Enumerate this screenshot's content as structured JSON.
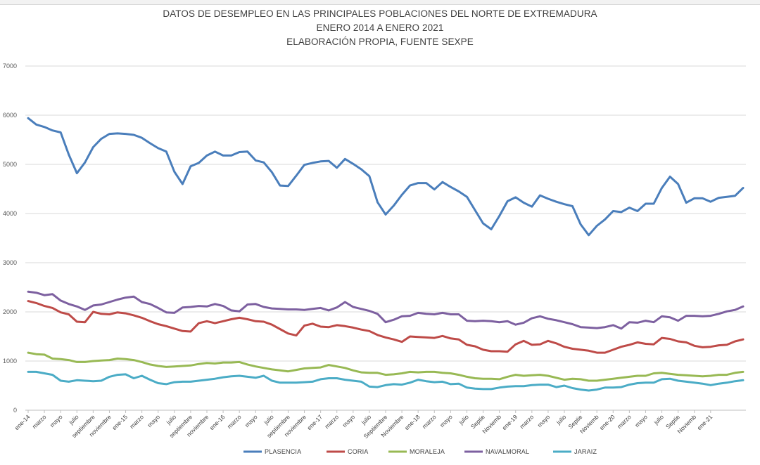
{
  "chart_data": {
    "type": "line",
    "title": "DATOS DE DESEMPLEO EN LAS PRINCIPALES POBLACIONES DEL NORTE DE EXTREMADURA",
    "subtitle": "ENERO 2014 A  ENERO  2021",
    "subtitle2": "ELABORACIÓN PROPIA, FUENTE SEXPE",
    "xlabel": "",
    "ylabel": "",
    "ylim": [
      0,
      7000
    ],
    "yticks": [
      "0",
      "1000",
      "2000",
      "3000",
      "4000",
      "5000",
      "6000",
      "7000"
    ],
    "grid": true,
    "legend_position": "bottom",
    "x_tick_labels": [
      "ene-14",
      "marzo",
      "mayo",
      "julio",
      "septiembre",
      "noviembre",
      "ene-15",
      "marzo",
      "mayo",
      "julio",
      "septiembre",
      "noviembre",
      "ene-16",
      "marzo",
      "mayo",
      "julio",
      "septiembre",
      "noviembre",
      "ene-17",
      "marzo",
      "mayo",
      "julio",
      "Septiembre",
      "Noviembre",
      "ene-18",
      "marzo",
      "mayo",
      "julio",
      "Septie",
      "Noviemb",
      "ene-19",
      "marzo",
      "mayo",
      "julio",
      "Septie",
      "Noviemb",
      "ene-20",
      "marzo",
      "mayo",
      "julio",
      "Septie",
      "Noviemb",
      "ene-21"
    ],
    "series": [
      {
        "name": "PLASENCIA",
        "color": "#4a7ebb",
        "values": [
          5940,
          5810,
          5760,
          5690,
          5650,
          5200,
          4820,
          5040,
          5350,
          5520,
          5620,
          5630,
          5620,
          5600,
          5540,
          5430,
          5330,
          5260,
          4850,
          4600,
          4960,
          5030,
          5180,
          5260,
          5180,
          5180,
          5250,
          5260,
          5080,
          5040,
          4840,
          4570,
          4560,
          4770,
          4990,
          5030,
          5060,
          5070,
          4930,
          5110,
          5010,
          4900,
          4760,
          4230,
          3980,
          4160,
          4380,
          4570,
          4620,
          4620,
          4490,
          4640,
          4540,
          4450,
          4340,
          4070,
          3800,
          3680,
          3950,
          4250,
          4330,
          4220,
          4140,
          4370,
          4300,
          4240,
          4190,
          4150,
          3780,
          3560,
          3750,
          3880,
          4050,
          4030,
          4120,
          4050,
          4200,
          4200,
          4520,
          4750,
          4600,
          4220,
          4310,
          4310,
          4240,
          4320,
          4340,
          4360,
          4520
        ]
      },
      {
        "name": "CORIA",
        "color": "#be4b48",
        "values": [
          2220,
          2180,
          2120,
          2080,
          1990,
          1950,
          1800,
          1790,
          2000,
          1960,
          1950,
          1990,
          1970,
          1930,
          1880,
          1810,
          1750,
          1710,
          1660,
          1610,
          1600,
          1770,
          1810,
          1770,
          1810,
          1850,
          1880,
          1850,
          1810,
          1800,
          1740,
          1650,
          1560,
          1520,
          1720,
          1760,
          1700,
          1690,
          1730,
          1710,
          1680,
          1640,
          1610,
          1530,
          1480,
          1440,
          1390,
          1500,
          1490,
          1480,
          1470,
          1510,
          1460,
          1440,
          1330,
          1300,
          1230,
          1200,
          1200,
          1190,
          1340,
          1410,
          1330,
          1340,
          1410,
          1360,
          1290,
          1250,
          1230,
          1210,
          1170,
          1170,
          1230,
          1290,
          1330,
          1380,
          1350,
          1340,
          1470,
          1450,
          1400,
          1380,
          1310,
          1280,
          1290,
          1320,
          1330,
          1400,
          1440
        ]
      },
      {
        "name": "MORALEJA",
        "color": "#98b954",
        "values": [
          1170,
          1140,
          1130,
          1050,
          1040,
          1020,
          980,
          980,
          1000,
          1010,
          1020,
          1050,
          1040,
          1020,
          980,
          930,
          900,
          880,
          890,
          900,
          910,
          940,
          960,
          950,
          970,
          970,
          980,
          930,
          890,
          860,
          830,
          810,
          790,
          820,
          850,
          860,
          870,
          920,
          890,
          860,
          810,
          770,
          760,
          760,
          720,
          730,
          750,
          780,
          770,
          780,
          780,
          760,
          750,
          720,
          680,
          650,
          640,
          640,
          630,
          680,
          720,
          700,
          710,
          720,
          700,
          660,
          620,
          640,
          630,
          600,
          600,
          620,
          640,
          660,
          680,
          700,
          700,
          750,
          760,
          740,
          720,
          710,
          700,
          690,
          700,
          720,
          720,
          760,
          780
        ]
      },
      {
        "name": "NAVALMORAL",
        "color": "#7d60a0",
        "values": [
          2410,
          2390,
          2340,
          2360,
          2230,
          2160,
          2110,
          2040,
          2130,
          2150,
          2200,
          2250,
          2290,
          2310,
          2200,
          2160,
          2080,
          1990,
          1980,
          2090,
          2100,
          2120,
          2110,
          2160,
          2120,
          2030,
          2010,
          2150,
          2160,
          2100,
          2070,
          2060,
          2050,
          2050,
          2040,
          2060,
          2080,
          2030,
          2090,
          2200,
          2100,
          2060,
          2020,
          1960,
          1790,
          1840,
          1910,
          1920,
          1980,
          1960,
          1950,
          1980,
          1950,
          1950,
          1820,
          1810,
          1820,
          1810,
          1790,
          1810,
          1740,
          1780,
          1870,
          1910,
          1860,
          1830,
          1790,
          1750,
          1690,
          1680,
          1670,
          1690,
          1730,
          1660,
          1790,
          1780,
          1820,
          1790,
          1910,
          1890,
          1820,
          1920,
          1920,
          1910,
          1920,
          1960,
          2010,
          2040,
          2110
        ]
      },
      {
        "name": "JARAIZ",
        "color": "#4bacc6",
        "values": [
          780,
          780,
          750,
          720,
          600,
          580,
          610,
          600,
          590,
          600,
          680,
          720,
          730,
          650,
          700,
          620,
          550,
          530,
          570,
          580,
          580,
          600,
          620,
          640,
          670,
          690,
          700,
          680,
          660,
          700,
          600,
          560,
          560,
          560,
          570,
          580,
          630,
          650,
          650,
          620,
          600,
          580,
          480,
          470,
          510,
          530,
          520,
          560,
          620,
          590,
          570,
          580,
          530,
          540,
          460,
          440,
          430,
          430,
          460,
          480,
          490,
          490,
          510,
          520,
          520,
          470,
          500,
          450,
          420,
          400,
          420,
          460,
          460,
          470,
          520,
          550,
          560,
          560,
          630,
          640,
          600,
          580,
          560,
          540,
          510,
          540,
          560,
          590,
          610
        ]
      }
    ]
  }
}
